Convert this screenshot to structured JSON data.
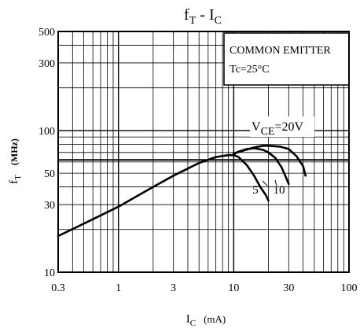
{
  "chart_data": {
    "type": "line",
    "title": {
      "main": "f",
      "main_sub": "T",
      "sep": " - ",
      "main2": "I",
      "main2_sub": "C"
    },
    "ylabel": {
      "main": "f",
      "sub": "T",
      "unit": "(MHz)"
    },
    "xlabel": {
      "main": "I",
      "sub": "C",
      "unit": "(mA)"
    },
    "x_scale": "log",
    "y_scale": "log",
    "xlim": [
      0.3,
      100
    ],
    "ylim": [
      10,
      500
    ],
    "x_ticks": [
      0.3,
      1,
      3,
      10,
      30,
      100
    ],
    "x_tick_labels": [
      "0.3",
      "1",
      "3",
      "10",
      "30",
      "100"
    ],
    "y_ticks": [
      10,
      30,
      50,
      100,
      300,
      500
    ],
    "y_tick_labels": [
      "10",
      "30",
      "50",
      "100",
      "300",
      "500"
    ],
    "grid": true,
    "reference_line_y": 62,
    "annotation_box": {
      "line1": "COMMON EMITTER",
      "line2": "Tc=25°C"
    },
    "vce_label": {
      "prefix": "V",
      "sub": "CE",
      "suffix": "=20V"
    },
    "series": [
      {
        "name": "5",
        "x": [
          0.3,
          0.5,
          1,
          2,
          3,
          5,
          7,
          9,
          10,
          11,
          13,
          15,
          17,
          19,
          20
        ],
        "y": [
          18,
          22,
          29,
          40,
          48,
          59,
          65,
          67,
          67,
          65,
          57,
          48,
          40,
          35,
          32
        ]
      },
      {
        "name": "10",
        "x": [
          10,
          11,
          13,
          15,
          18,
          20,
          23,
          26,
          28,
          30
        ],
        "y": [
          68,
          71,
          74,
          75,
          73,
          70,
          64,
          55,
          48,
          42
        ]
      },
      {
        "name": "",
        "x": [
          10,
          12,
          15,
          18,
          20,
          25,
          30,
          35,
          40,
          42
        ],
        "y": [
          69,
          72,
          76,
          78,
          78,
          77,
          74,
          66,
          56,
          48
        ]
      }
    ]
  }
}
